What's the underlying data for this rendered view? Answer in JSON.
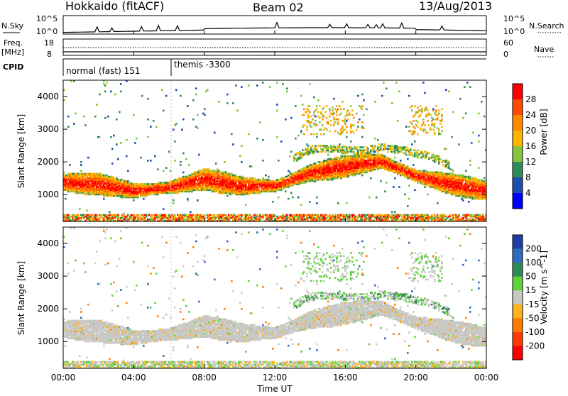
{
  "header": {
    "station": "Hokkaido (fitACF)",
    "beam": "Beam 02",
    "date": "13/Aug/2013"
  },
  "noise_panel": {
    "left_label": "N.Sky",
    "right_label": "N.Search",
    "left_ticks": [
      "10^5",
      "10^0"
    ],
    "right_ticks": [
      "10^5",
      "10^0"
    ]
  },
  "freq_panel": {
    "left_label_top": "Freq.",
    "left_label_bottom": "[MHz]",
    "left_ticks": [
      "18",
      "8"
    ],
    "right_label": "Nave",
    "right_ticks": [
      "60",
      "0"
    ]
  },
  "cpid_panel": {
    "label": "CPID",
    "segments": [
      {
        "name": "normal (fast) 151",
        "start_hour": 0,
        "end_hour": 6.1
      },
      {
        "name": "themis -3300",
        "start_hour": 6.1,
        "end_hour": 24
      }
    ]
  },
  "power_panel": {
    "ylabel": "Slant Range [km]",
    "colorbar_label": "Power [dB]",
    "colorbar_ticks": [
      "28",
      "24",
      "20",
      "16",
      "12",
      "8",
      "4"
    ],
    "colorbar_colors": [
      "#ff0000",
      "#ff4a00",
      "#ff8a00",
      "#ffb400",
      "#86c23a",
      "#2f8c5a",
      "#1c4fae",
      "#0000ff"
    ]
  },
  "velocity_panel": {
    "ylabel": "Slant Range [km]",
    "colorbar_label": "Velocity [m s^-1]",
    "colorbar_ticks": [
      "200",
      "100",
      "50",
      "15",
      "-15",
      "-50",
      "-100",
      "-200"
    ],
    "colorbar_colors": [
      "#1f3fa6",
      "#2d6cbf",
      "#2e8b57",
      "#5fd13a",
      "#c8c8c4",
      "#ffb11a",
      "#ff7a00",
      "#ff3b00",
      "#ff0000"
    ]
  },
  "xaxis": {
    "label": "Time UT",
    "ticks": [
      "00:00",
      "04:00",
      "08:00",
      "12:00",
      "16:00",
      "20:00",
      "00:00"
    ]
  },
  "chart_data": {
    "type": "heatmap",
    "title": "Hokkaido (fitACF) Beam 02 13/Aug/2013",
    "xlabel": "Time UT",
    "ylabel": "Slant Range [km]",
    "xlim_hours": [
      0,
      24
    ],
    "ylim_km": [
      180,
      4500
    ],
    "power_db_range": [
      0,
      30
    ],
    "velocity_range": [
      -250,
      250
    ],
    "power_band": [
      {
        "hour": 0,
        "range_km": 1350
      },
      {
        "hour": 2,
        "range_km": 1300
      },
      {
        "hour": 4,
        "range_km": 1100
      },
      {
        "hour": 6,
        "range_km": 1200
      },
      {
        "hour": 8,
        "range_km": 1450
      },
      {
        "hour": 10,
        "range_km": 1250
      },
      {
        "hour": 12,
        "range_km": 1250
      },
      {
        "hour": 14,
        "range_km": 1650
      },
      {
        "hour": 16,
        "range_km": 1850
      },
      {
        "hour": 18,
        "range_km": 2000
      },
      {
        "hour": 20,
        "range_km": 1550
      },
      {
        "hour": 22,
        "range_km": 1300
      },
      {
        "hour": 24,
        "range_km": 1100
      }
    ]
  }
}
